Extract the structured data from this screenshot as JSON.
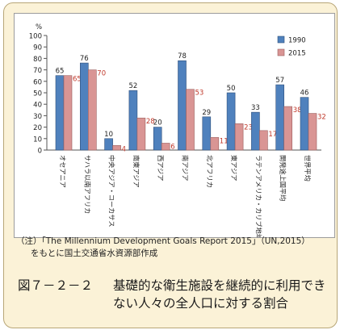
{
  "figure": {
    "note_line1": "（注）「The Millennium Development Goals Report 2015」（UN,2015）",
    "note_line2": "をもとに国土交通省水資源部作成",
    "caption_number": "図７－２－２",
    "caption_text": "基礎的な衛生施設を継続的に利用できない人々の全人口に対する割合"
  },
  "colors": {
    "series_1990": "#4f81bd",
    "series_2015": "#d99594",
    "label_2015": "#c0392b",
    "panel_background": "#fbf2d7"
  },
  "chart_data": {
    "type": "bar",
    "ylabel": "%",
    "ylim": [
      0,
      100
    ],
    "yticks": [
      0,
      10,
      20,
      30,
      40,
      50,
      60,
      70,
      80,
      90,
      100
    ],
    "grid": false,
    "legend_position": "top-right",
    "categories": [
      "オセアニア",
      "サハラ以南アフリカ",
      "中央アジア・コーカサス",
      "南東アジア",
      "西アジア",
      "南アジア",
      "北アフリカ",
      "東アジア",
      "ラテンアメリカ・カリブ地域",
      "開発途上国平均",
      "世界平均"
    ],
    "series": [
      {
        "name": "1990",
        "values": [
          65,
          76,
          10,
          52,
          20,
          78,
          29,
          50,
          33,
          57,
          46
        ]
      },
      {
        "name": "2015",
        "values": [
          65,
          70,
          4,
          28,
          6,
          53,
          11,
          23,
          17,
          38,
          32
        ]
      }
    ]
  }
}
